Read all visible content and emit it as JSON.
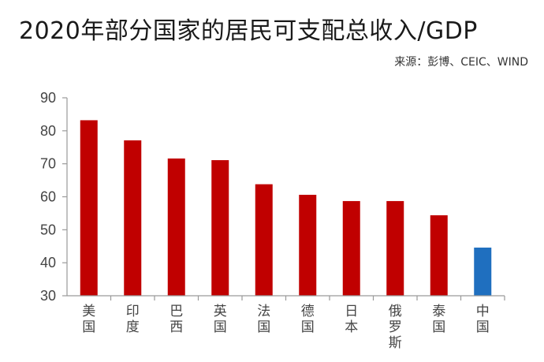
{
  "header": {
    "title": "2020年部分国家的居民可支配总收入/GDP",
    "source": "来源：彭博、CEIC、WIND"
  },
  "colors": {
    "bar": "#c00000",
    "highlight": "#1f6fbf",
    "axis": "#9a9a9a"
  },
  "chart_data": {
    "type": "bar",
    "title": "2020年部分国家的居民可支配总收入/GDP",
    "categories": [
      "美国",
      "印度",
      "巴西",
      "英国",
      "法国",
      "德国",
      "日本",
      "俄罗斯",
      "泰国",
      "中国"
    ],
    "values": [
      83.2,
      77.1,
      71.6,
      71.1,
      63.8,
      60.6,
      58.7,
      58.7,
      54.4,
      44.6
    ],
    "highlight_category": "中国",
    "ylim": [
      30,
      90
    ],
    "yticks": [
      "30",
      "40",
      "50",
      "60",
      "70",
      "80",
      "90"
    ],
    "xlabel": "",
    "ylabel": "",
    "grid": false,
    "legend": "none"
  }
}
